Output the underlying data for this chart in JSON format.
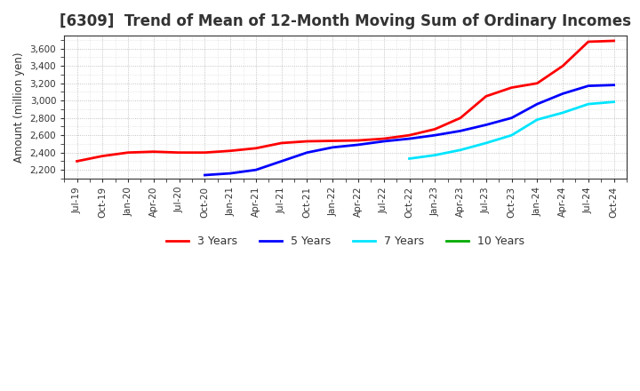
{
  "title": "[6309]  Trend of Mean of 12-Month Moving Sum of Ordinary Incomes",
  "ylabel": "Amount (million yen)",
  "background_color": "#ffffff",
  "grid_color": "#aaaaaa",
  "ylim": [
    2100,
    3750
  ],
  "yticks": [
    2200,
    2400,
    2600,
    2800,
    3000,
    3200,
    3400,
    3600
  ],
  "title_color": "#333333",
  "title_fontsize": 12,
  "series": {
    "3 Years": {
      "color": "#ff0000",
      "data": {
        "Jul-19": 2300,
        "Oct-19": 2360,
        "Jan-20": 2400,
        "Apr-20": 2410,
        "Jul-20": 2400,
        "Oct-20": 2400,
        "Jan-21": 2420,
        "Apr-21": 2450,
        "Jul-21": 2510,
        "Oct-21": 2530,
        "Jan-22": 2535,
        "Apr-22": 2540,
        "Jul-22": 2560,
        "Oct-22": 2600,
        "Jan-23": 2670,
        "Apr-23": 2800,
        "Jul-23": 3050,
        "Oct-23": 3150,
        "Jan-24": 3200,
        "Apr-24": 3400,
        "Jul-24": 3680,
        "Oct-24": 3690
      }
    },
    "5 Years": {
      "color": "#0000ff",
      "data": {
        "Oct-20": 2140,
        "Jan-21": 2160,
        "Apr-21": 2200,
        "Jul-21": 2300,
        "Oct-21": 2400,
        "Jan-22": 2460,
        "Apr-22": 2490,
        "Jul-22": 2530,
        "Oct-22": 2560,
        "Jan-23": 2600,
        "Apr-23": 2650,
        "Jul-23": 2720,
        "Oct-23": 2800,
        "Jan-24": 2960,
        "Apr-24": 3080,
        "Jul-24": 3170,
        "Oct-24": 3180
      }
    },
    "7 Years": {
      "color": "#00e5ff",
      "data": {
        "Oct-22": 2330,
        "Jan-23": 2370,
        "Apr-23": 2430,
        "Jul-23": 2510,
        "Oct-23": 2600,
        "Jan-24": 2780,
        "Apr-24": 2860,
        "Jul-24": 2960,
        "Oct-24": 2985
      }
    },
    "10 Years": {
      "color": "#00aa00",
      "data": {}
    }
  },
  "legend_labels": [
    "3 Years",
    "5 Years",
    "7 Years",
    "10 Years"
  ],
  "legend_colors": [
    "#ff0000",
    "#0000ff",
    "#00e5ff",
    "#00aa00"
  ],
  "xtick_labels": [
    "Jul-19",
    "Oct-19",
    "Jan-20",
    "Apr-20",
    "Jul-20",
    "Oct-20",
    "Jan-21",
    "Apr-21",
    "Jul-21",
    "Oct-21",
    "Jan-22",
    "Apr-22",
    "Jul-22",
    "Oct-22",
    "Jan-23",
    "Apr-23",
    "Jul-23",
    "Oct-23",
    "Jan-24",
    "Apr-24",
    "Jul-24",
    "Oct-24"
  ]
}
